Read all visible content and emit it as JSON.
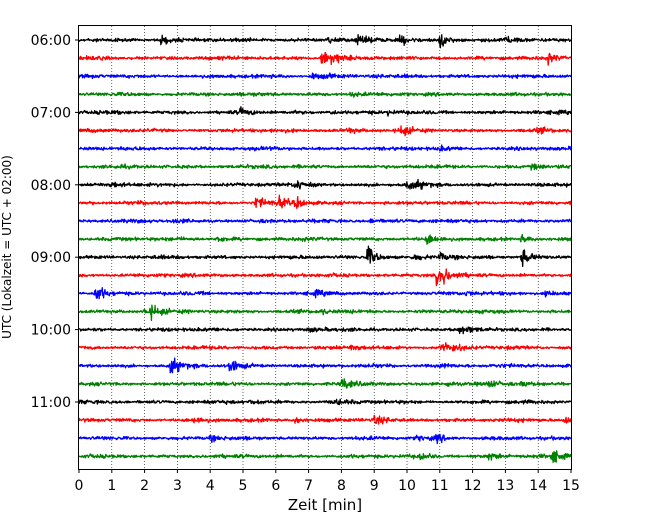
{
  "chart_data": {
    "type": "line",
    "title": "",
    "xlabel": "Zeit  [min]",
    "ylabel": "UTC (Lokalzeit = UTC + 02:00)",
    "xlim": [
      0,
      15
    ],
    "x_ticks": [
      0,
      1,
      2,
      3,
      4,
      5,
      6,
      7,
      8,
      9,
      10,
      11,
      12,
      13,
      14,
      15
    ],
    "x_tick_labels": [
      "0",
      "1",
      "2",
      "3",
      "4",
      "5",
      "6",
      "7",
      "8",
      "9",
      "10",
      "11",
      "12",
      "13",
      "14",
      "15"
    ],
    "y_tick_labels": [
      "06:00",
      "07:00",
      "08:00",
      "09:00",
      "10:00",
      "11:00"
    ],
    "grid": "vertical dotted",
    "trace_colors": [
      "#000000",
      "#ff0000",
      "#0000ff",
      "#008000"
    ],
    "series": [
      {
        "start": "06:00",
        "events": [
          [
            2.5,
            0.7
          ],
          [
            7.6,
            0.5
          ],
          [
            8.5,
            0.7
          ],
          [
            9.8,
            0.8
          ],
          [
            11.0,
            1.2
          ],
          [
            13.0,
            0.6
          ]
        ]
      },
      {
        "start": "06:15",
        "events": [
          [
            7.4,
            1.4
          ],
          [
            7.7,
            0.8
          ],
          [
            14.3,
            0.7
          ]
        ]
      },
      {
        "start": "06:30",
        "events": [
          [
            7.1,
            0.5
          ],
          [
            7.5,
            0.3
          ]
        ]
      },
      {
        "start": "06:45",
        "events": [
          [
            8.3,
            0.4
          ]
        ]
      },
      {
        "start": "07:00",
        "events": [
          [
            4.9,
            0.5
          ],
          [
            7.6,
            0.4
          ],
          [
            9.4,
            0.3
          ]
        ]
      },
      {
        "start": "07:15",
        "events": [
          [
            8.2,
            0.4
          ],
          [
            9.8,
            0.8
          ],
          [
            14.0,
            0.3
          ]
        ]
      },
      {
        "start": "07:30",
        "events": [
          [
            11.0,
            0.3
          ]
        ]
      },
      {
        "start": "07:45",
        "events": [
          [
            13.8,
            0.5
          ]
        ]
      },
      {
        "start": "08:00",
        "events": [
          [
            1.0,
            0.3
          ],
          [
            6.6,
            0.8
          ],
          [
            10.0,
            0.8
          ],
          [
            10.3,
            0.4
          ]
        ]
      },
      {
        "start": "08:15",
        "events": [
          [
            5.4,
            1.0
          ],
          [
            6.1,
            0.8
          ],
          [
            6.6,
            0.8
          ]
        ]
      },
      {
        "start": "08:30",
        "events": [
          [
            2.9,
            0.3
          ],
          [
            8.9,
            0.3
          ]
        ]
      },
      {
        "start": "08:45",
        "events": [
          [
            4.2,
            0.5
          ],
          [
            10.6,
            0.8
          ],
          [
            13.5,
            0.6
          ]
        ]
      },
      {
        "start": "09:00",
        "events": [
          [
            8.8,
            1.8
          ],
          [
            10.2,
            0.4
          ],
          [
            11.0,
            0.6
          ],
          [
            13.5,
            1.4
          ]
        ]
      },
      {
        "start": "09:15",
        "events": [
          [
            10.9,
            1.2
          ],
          [
            11.1,
            0.8
          ]
        ]
      },
      {
        "start": "09:30",
        "events": [
          [
            0.5,
            1.8
          ],
          [
            7.2,
            0.3
          ],
          [
            11.8,
            0.3
          ],
          [
            14.2,
            0.6
          ]
        ]
      },
      {
        "start": "09:45",
        "events": [
          [
            2.0,
            0.6
          ],
          [
            2.2,
            0.8
          ],
          [
            7.4,
            0.3
          ]
        ]
      },
      {
        "start": "10:00",
        "events": [
          [
            7.0,
            0.3
          ],
          [
            11.6,
            0.6
          ]
        ]
      },
      {
        "start": "10:15",
        "events": [
          [
            8.3,
            0.5
          ],
          [
            11.0,
            1.2
          ],
          [
            11.3,
            0.5
          ]
        ]
      },
      {
        "start": "10:30",
        "events": [
          [
            2.8,
            1.6
          ],
          [
            4.6,
            1.2
          ],
          [
            11.0,
            0.3
          ]
        ]
      },
      {
        "start": "10:45",
        "events": [
          [
            8.0,
            0.9
          ],
          [
            11.2,
            0.5
          ],
          [
            12.5,
            0.4
          ],
          [
            13.5,
            0.4
          ]
        ]
      },
      {
        "start": "11:00",
        "events": [
          [
            5.2,
            0.3
          ],
          [
            7.8,
            0.3
          ]
        ]
      },
      {
        "start": "11:15",
        "events": [
          [
            3.5,
            0.5
          ],
          [
            6.6,
            0.6
          ],
          [
            9.0,
            0.6
          ],
          [
            14.8,
            0.5
          ]
        ]
      },
      {
        "start": "11:30",
        "events": [
          [
            4.0,
            0.4
          ],
          [
            10.3,
            0.4
          ],
          [
            10.9,
            0.6
          ]
        ]
      },
      {
        "start": "11:45",
        "events": [
          [
            10.4,
            0.6
          ],
          [
            12.5,
            0.6
          ],
          [
            14.4,
            1.2
          ]
        ]
      }
    ]
  }
}
